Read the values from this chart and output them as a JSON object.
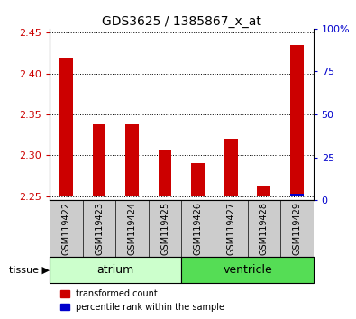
{
  "title": "GDS3625 / 1385867_x_at",
  "samples": [
    "GSM119422",
    "GSM119423",
    "GSM119424",
    "GSM119425",
    "GSM119426",
    "GSM119427",
    "GSM119428",
    "GSM119429"
  ],
  "red_values": [
    2.42,
    2.338,
    2.338,
    2.307,
    2.29,
    2.32,
    2.263,
    2.435
  ],
  "blue_percentiles": [
    2,
    2,
    2,
    2,
    2,
    2,
    2,
    4
  ],
  "ylim_left": [
    2.245,
    2.455
  ],
  "ylim_right": [
    0,
    100
  ],
  "yticks_left": [
    2.25,
    2.3,
    2.35,
    2.4,
    2.45
  ],
  "yticks_right": [
    0,
    25,
    50,
    75,
    100
  ],
  "ytick_labels_right": [
    "0",
    "25",
    "50",
    "75",
    "100%"
  ],
  "bar_bottom": 2.25,
  "tissue_groups": [
    {
      "label": "atrium",
      "start": 0,
      "end": 4,
      "color": "#ccffcc"
    },
    {
      "label": "ventricle",
      "start": 4,
      "end": 8,
      "color": "#55dd55"
    }
  ],
  "red_color": "#cc0000",
  "blue_color": "#0000cc",
  "tick_label_color_left": "#cc0000",
  "tick_label_color_right": "#0000cc",
  "sample_bg_color": "#cccccc",
  "plot_bg_color": "#ffffff",
  "legend_items": [
    {
      "color": "#cc0000",
      "label": "transformed count"
    },
    {
      "color": "#0000cc",
      "label": "percentile rank within the sample"
    }
  ],
  "tissue_label": "tissue",
  "tissue_arrow": "▶"
}
